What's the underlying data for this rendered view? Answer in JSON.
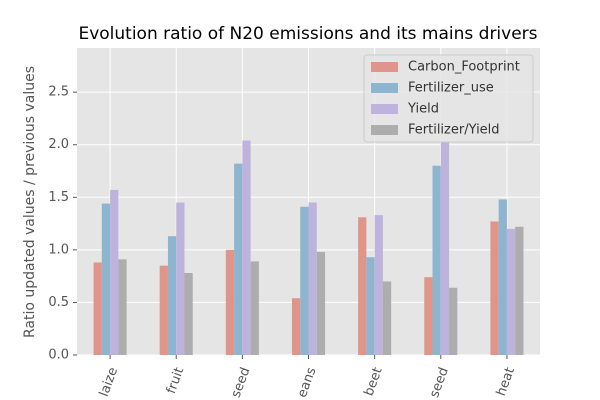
{
  "chart_data": {
    "type": "bar",
    "title": "Evolution ratio of N20 emissions and its mains drivers",
    "y_label": "Ratio updated values / previous values",
    "categories": [
      "laize",
      "fruit",
      "seed",
      "eans",
      "beet",
      "seed",
      "heat"
    ],
    "series": [
      {
        "name": "Carbon_Footprint",
        "color": "#e0958a",
        "values": [
          0.88,
          0.85,
          1.0,
          0.54,
          1.31,
          0.74,
          1.27
        ]
      },
      {
        "name": "Fertilizer_use",
        "color": "#8eb5d0",
        "values": [
          1.44,
          1.13,
          1.82,
          1.41,
          0.93,
          1.8,
          1.48
        ]
      },
      {
        "name": "Yield",
        "color": "#bdb3dc",
        "values": [
          1.57,
          1.45,
          2.04,
          1.45,
          1.33,
          2.03,
          1.2
        ]
      },
      {
        "name": "Fertilizer/Yield",
        "color": "#adadad",
        "values": [
          0.91,
          0.78,
          0.89,
          0.98,
          0.7,
          0.64,
          1.22
        ]
      }
    ],
    "ylim": [
      0,
      2.92
    ],
    "yticks": [
      {
        "value": 0,
        "label": "0.0"
      },
      0.5,
      {
        "value": 1,
        "label": "1.0"
      },
      1.5,
      {
        "value": 2,
        "label": "2.0"
      },
      2.5
    ],
    "grid": true,
    "legend": "upper right"
  }
}
